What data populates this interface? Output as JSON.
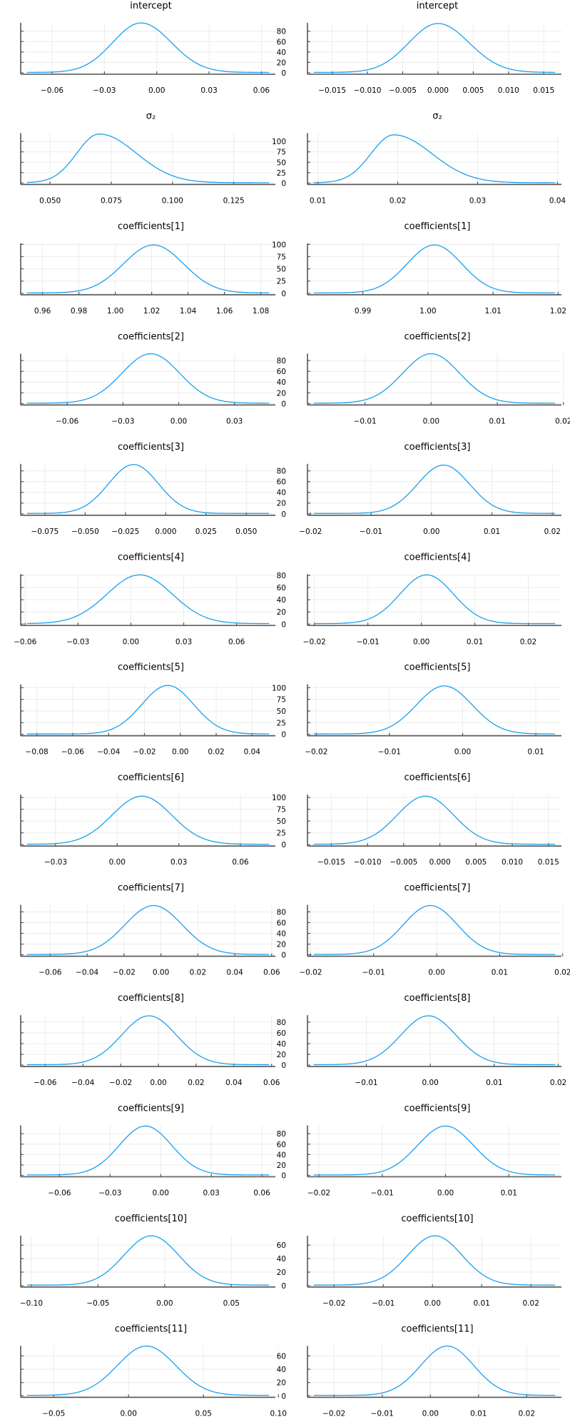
{
  "chart_data": {
    "type": "line",
    "layout": "grid",
    "rows": 13,
    "cols": 2,
    "series_color": "#1aa0ee",
    "grid": true,
    "legend": "none",
    "panels": [
      {
        "title": "intercept",
        "col": 0,
        "xlim": [
          -0.078,
          0.068
        ],
        "ylim": [
          0,
          96
        ],
        "xticks": [
          -0.06,
          -0.03,
          0.0,
          0.03,
          0.06
        ],
        "xtick_labels": [
          "−0.06",
          "−0.03",
          "0.00",
          "0.03",
          "0.06"
        ],
        "yticks": [
          0,
          20,
          40,
          60,
          80
        ],
        "ytick_labels": [
          "0",
          "20",
          "40",
          "60",
          "80"
        ],
        "peak_x": -0.009,
        "peak_y": 95,
        "sd": 0.0165,
        "skew": 0.05
      },
      {
        "title": "intercept",
        "col": 1,
        "xlim": [
          -0.0185,
          0.0175
        ],
        "ylim": [
          0,
          96
        ],
        "xticks": [
          -0.015,
          -0.01,
          -0.005,
          0.0,
          0.005,
          0.01,
          0.015
        ],
        "xtick_labels": [
          "−0.015",
          "−0.010",
          "−0.005",
          "0.000",
          "0.005",
          "0.010",
          "0.015"
        ],
        "yticks": [
          0,
          20,
          40,
          60,
          80
        ],
        "ytick_labels": [],
        "peak_x": 0.0,
        "peak_y": 94,
        "sd": 0.0042,
        "skew": 0.05
      },
      {
        "title": "σ₂",
        "col": 0,
        "xlim": [
          0.038,
          0.142
        ],
        "ylim": [
          0,
          120
        ],
        "xticks": [
          0.05,
          0.075,
          0.1,
          0.125
        ],
        "xtick_labels": [
          "0.050",
          "0.075",
          "0.100",
          "0.125"
        ],
        "yticks": [
          0,
          25,
          50,
          75,
          100
        ],
        "ytick_labels": [
          "0",
          "25",
          "50",
          "75",
          "100"
        ],
        "peak_x": 0.07,
        "peak_y": 117,
        "sd": 0.0105,
        "skew": 0.45
      },
      {
        "title": "σ₂",
        "col": 1,
        "xlim": [
          0.0087,
          0.0405
        ],
        "ylim": [
          0,
          120
        ],
        "xticks": [
          0.01,
          0.02,
          0.03,
          0.04
        ],
        "xtick_labels": [
          "0.01",
          "0.02",
          "0.03",
          "0.04"
        ],
        "yticks": [
          0,
          25,
          50,
          75,
          100
        ],
        "ytick_labels": [],
        "peak_x": 0.0195,
        "peak_y": 115,
        "sd": 0.0033,
        "skew": 0.45
      },
      {
        "title": "coefficients[1]",
        "col": 0,
        "xlim": [
          0.948,
          1.088
        ],
        "ylim": [
          0,
          102
        ],
        "xticks": [
          0.96,
          0.98,
          1.0,
          1.02,
          1.04,
          1.06,
          1.08
        ],
        "xtick_labels": [
          "0.96",
          "0.98",
          "1.00",
          "1.02",
          "1.04",
          "1.06",
          "1.08"
        ],
        "yticks": [
          0,
          25,
          50,
          75,
          100
        ],
        "ytick_labels": [
          "0",
          "25",
          "50",
          "75",
          "100"
        ],
        "peak_x": 1.021,
        "peak_y": 98,
        "sd": 0.0165,
        "skew": 0.0
      },
      {
        "title": "coefficients[1]",
        "col": 1,
        "xlim": [
          0.9815,
          1.0205
        ],
        "ylim": [
          0,
          102
        ],
        "xticks": [
          0.99,
          1.0,
          1.01,
          1.02
        ],
        "xtick_labels": [
          "0.99",
          "1.00",
          "1.01",
          "1.02"
        ],
        "yticks": [
          0,
          25,
          50,
          75,
          100
        ],
        "ytick_labels": [],
        "peak_x": 1.001,
        "peak_y": 98,
        "sd": 0.0042,
        "skew": 0.0
      },
      {
        "title": "coefficients[2]",
        "col": 0,
        "xlim": [
          -0.085,
          0.052
        ],
        "ylim": [
          0,
          93
        ],
        "xticks": [
          -0.06,
          -0.03,
          0.0,
          0.03
        ],
        "xtick_labels": [
          "−0.06",
          "−0.03",
          "0.00",
          "0.03"
        ],
        "yticks": [
          0,
          20,
          40,
          60,
          80
        ],
        "ytick_labels": [
          "0",
          "20",
          "40",
          "60",
          "80"
        ],
        "peak_x": -0.015,
        "peak_y": 92,
        "sd": 0.0155,
        "skew": 0.0
      },
      {
        "title": "coefficients[2]",
        "col": 1,
        "xlim": [
          -0.0187,
          0.0197
        ],
        "ylim": [
          0,
          93
        ],
        "xticks": [
          -0.01,
          0.0,
          0.01,
          0.02
        ],
        "xtick_labels": [
          "−0.01",
          "0.00",
          "0.01",
          "0.02"
        ],
        "yticks": [
          0,
          20,
          40,
          60,
          80
        ],
        "ytick_labels": [],
        "peak_x": 0.0,
        "peak_y": 92,
        "sd": 0.0043,
        "skew": 0.0
      },
      {
        "title": "coefficients[3]",
        "col": 0,
        "xlim": [
          -0.09,
          0.068
        ],
        "ylim": [
          0,
          93
        ],
        "xticks": [
          -0.075,
          -0.05,
          -0.025,
          0.0,
          0.025,
          0.05
        ],
        "xtick_labels": [
          "−0.075",
          "−0.050",
          "−0.025",
          "0.000",
          "0.025",
          "0.050"
        ],
        "yticks": [
          0,
          20,
          40,
          60,
          80
        ],
        "ytick_labels": [
          "0",
          "20",
          "40",
          "60",
          "80"
        ],
        "peak_x": -0.02,
        "peak_y": 91,
        "sd": 0.0155,
        "skew": 0.0
      },
      {
        "title": "coefficients[3]",
        "col": 1,
        "xlim": [
          -0.0205,
          0.0215
        ],
        "ylim": [
          0,
          93
        ],
        "xticks": [
          -0.02,
          -0.01,
          0.0,
          0.01,
          0.02
        ],
        "xtick_labels": [
          "−0.02",
          "−0.01",
          "0.00",
          "0.01",
          "0.02"
        ],
        "yticks": [
          0,
          20,
          40,
          60,
          80
        ],
        "ytick_labels": [],
        "peak_x": 0.002,
        "peak_y": 90,
        "sd": 0.0043,
        "skew": 0.0
      },
      {
        "title": "coefficients[4]",
        "col": 0,
        "xlim": [
          -0.0625,
          0.082
        ],
        "ylim": [
          0,
          82
        ],
        "xticks": [
          -0.06,
          -0.03,
          0.0,
          0.03,
          0.06
        ],
        "xtick_labels": [
          "−0.06",
          "−0.03",
          "0.00",
          "0.03",
          "0.06"
        ],
        "yticks": [
          0,
          20,
          40,
          60,
          80
        ],
        "ytick_labels": [
          "0",
          "20",
          "40",
          "60",
          "80"
        ],
        "peak_x": 0.005,
        "peak_y": 80,
        "sd": 0.0185,
        "skew": 0.0
      },
      {
        "title": "coefficients[4]",
        "col": 1,
        "xlim": [
          -0.0213,
          0.0262
        ],
        "ylim": [
          0,
          82
        ],
        "xticks": [
          -0.02,
          -0.01,
          0.0,
          0.01,
          0.02
        ],
        "xtick_labels": [
          "−0.02",
          "−0.01",
          "0.00",
          "0.01",
          "0.02"
        ],
        "yticks": [
          0,
          20,
          40,
          60,
          80
        ],
        "ytick_labels": [],
        "peak_x": 0.001,
        "peak_y": 80,
        "sd": 0.005,
        "skew": 0.0
      },
      {
        "title": "coefficients[5]",
        "col": 0,
        "xlim": [
          -0.089,
          0.053
        ],
        "ylim": [
          0,
          107
        ],
        "xticks": [
          -0.08,
          -0.06,
          -0.04,
          -0.02,
          0.0,
          0.02,
          0.04
        ],
        "xtick_labels": [
          "−0.08",
          "−0.06",
          "−0.04",
          "−0.02",
          "0.00",
          "0.02",
          "0.04"
        ],
        "yticks": [
          0,
          25,
          50,
          75,
          100
        ],
        "ytick_labels": [
          "0",
          "25",
          "50",
          "75",
          "100"
        ],
        "peak_x": -0.007,
        "peak_y": 104,
        "sd": 0.0145,
        "skew": 0.0
      },
      {
        "title": "coefficients[5]",
        "col": 1,
        "xlim": [
          -0.0212,
          0.0135
        ],
        "ylim": [
          0,
          107
        ],
        "xticks": [
          -0.02,
          -0.01,
          0.0,
          0.01
        ],
        "xtick_labels": [
          "−0.02",
          "−0.01",
          "0.00",
          "0.01"
        ],
        "yticks": [
          0,
          25,
          50,
          75,
          100
        ],
        "ytick_labels": [],
        "peak_x": -0.0025,
        "peak_y": 103,
        "sd": 0.0038,
        "skew": 0.0
      },
      {
        "title": "coefficients[6]",
        "col": 0,
        "xlim": [
          -0.047,
          0.077
        ],
        "ylim": [
          0,
          106
        ],
        "xticks": [
          -0.03,
          0.0,
          0.03,
          0.06
        ],
        "xtick_labels": [
          "−0.03",
          "0.00",
          "0.03",
          "0.06"
        ],
        "yticks": [
          0,
          25,
          50,
          75,
          100
        ],
        "ytick_labels": [
          "0",
          "25",
          "50",
          "75",
          "100"
        ],
        "peak_x": 0.012,
        "peak_y": 102,
        "sd": 0.0145,
        "skew": 0.0
      },
      {
        "title": "coefficients[6]",
        "col": 1,
        "xlim": [
          -0.0183,
          0.0168
        ],
        "ylim": [
          0,
          106
        ],
        "xticks": [
          -0.015,
          -0.01,
          -0.005,
          0.0,
          0.005,
          0.01,
          0.015
        ],
        "xtick_labels": [
          "−0.015",
          "−0.010",
          "−0.005",
          "0.000",
          "0.005",
          "0.010",
          "0.015"
        ],
        "yticks": [
          0,
          25,
          50,
          75,
          100
        ],
        "ytick_labels": [],
        "peak_x": -0.002,
        "peak_y": 102,
        "sd": 0.0039,
        "skew": 0.0
      },
      {
        "title": "coefficients[7]",
        "col": 0,
        "xlim": [
          -0.076,
          0.062
        ],
        "ylim": [
          0,
          93
        ],
        "xticks": [
          -0.06,
          -0.04,
          -0.02,
          0.0,
          0.02,
          0.04,
          0.06
        ],
        "xtick_labels": [
          "−0.06",
          "−0.04",
          "−0.02",
          "0.00",
          "0.02",
          "0.04",
          "0.06"
        ],
        "yticks": [
          0,
          20,
          40,
          60,
          80
        ],
        "ytick_labels": [
          "0",
          "20",
          "40",
          "60",
          "80"
        ],
        "peak_x": -0.004,
        "peak_y": 91,
        "sd": 0.0155,
        "skew": 0.0
      },
      {
        "title": "coefficients[7]",
        "col": 1,
        "xlim": [
          -0.0205,
          0.0198
        ],
        "ylim": [
          0,
          93
        ],
        "xticks": [
          -0.02,
          -0.01,
          0.0,
          0.01,
          0.02
        ],
        "xtick_labels": [
          "−0.02",
          "−0.01",
          "0.00",
          "0.01",
          "0.02"
        ],
        "yticks": [
          0,
          20,
          40,
          60,
          80
        ],
        "ytick_labels": [],
        "peak_x": -0.001,
        "peak_y": 91,
        "sd": 0.0043,
        "skew": 0.0
      },
      {
        "title": "coefficients[8]",
        "col": 0,
        "xlim": [
          -0.073,
          0.062
        ],
        "ylim": [
          0,
          93
        ],
        "xticks": [
          -0.06,
          -0.04,
          -0.02,
          0.0,
          0.02,
          0.04,
          0.06
        ],
        "xtick_labels": [
          "−0.06",
          "−0.04",
          "−0.02",
          "0.00",
          "0.02",
          "0.04",
          "0.06"
        ],
        "yticks": [
          0,
          20,
          40,
          60,
          80
        ],
        "ytick_labels": [
          "0",
          "20",
          "40",
          "60",
          "80"
        ],
        "peak_x": -0.005,
        "peak_y": 91,
        "sd": 0.0145,
        "skew": 0.0
      },
      {
        "title": "coefficients[8]",
        "col": 1,
        "xlim": [
          -0.0192,
          0.0205
        ],
        "ylim": [
          0,
          93
        ],
        "xticks": [
          -0.01,
          0.0,
          0.01,
          0.02
        ],
        "xtick_labels": [
          "−0.01",
          "0.00",
          "0.01",
          "0.02"
        ],
        "yticks": [
          0,
          20,
          40,
          60,
          80
        ],
        "ytick_labels": [],
        "peak_x": -0.0003,
        "peak_y": 91,
        "sd": 0.0043,
        "skew": 0.0
      },
      {
        "title": "coefficients[9]",
        "col": 0,
        "xlim": [
          -0.083,
          0.068
        ],
        "ylim": [
          0,
          96
        ],
        "xticks": [
          -0.06,
          -0.03,
          0.0,
          0.03,
          0.06
        ],
        "xtick_labels": [
          "−0.06",
          "−0.03",
          "0.00",
          "0.03",
          "0.06"
        ],
        "yticks": [
          0,
          20,
          40,
          60,
          80
        ],
        "ytick_labels": [
          "0",
          "20",
          "40",
          "60",
          "80"
        ],
        "peak_x": -0.009,
        "peak_y": 94,
        "sd": 0.0155,
        "skew": 0.0
      },
      {
        "title": "coefficients[9]",
        "col": 1,
        "xlim": [
          -0.0218,
          0.0183
        ],
        "ylim": [
          0,
          96
        ],
        "xticks": [
          -0.02,
          -0.01,
          0.0,
          0.01
        ],
        "xtick_labels": [
          "−0.02",
          "−0.01",
          "0.00",
          "0.01"
        ],
        "yticks": [
          0,
          20,
          40,
          60,
          80
        ],
        "ytick_labels": [],
        "peak_x": 0.0,
        "peak_y": 94,
        "sd": 0.0044,
        "skew": 0.0
      },
      {
        "title": "coefficients[10]",
        "col": 0,
        "xlim": [
          -0.108,
          0.083
        ],
        "ylim": [
          0,
          74
        ],
        "xticks": [
          -0.1,
          -0.05,
          0.0,
          0.05
        ],
        "xtick_labels": [
          "−0.10",
          "−0.05",
          "0.00",
          "0.05"
        ],
        "yticks": [
          0,
          20,
          40,
          60
        ],
        "ytick_labels": [
          "0",
          "20",
          "40",
          "60"
        ],
        "peak_x": -0.01,
        "peak_y": 73,
        "sd": 0.0205,
        "skew": 0.0
      },
      {
        "title": "coefficients[10]",
        "col": 1,
        "xlim": [
          -0.0254,
          0.0262
        ],
        "ylim": [
          0,
          74
        ],
        "xticks": [
          -0.02,
          -0.01,
          0.0,
          0.01,
          0.02
        ],
        "xtick_labels": [
          "−0.02",
          "−0.01",
          "0.00",
          "0.01",
          "0.02"
        ],
        "yticks": [
          0,
          20,
          40,
          60
        ],
        "ytick_labels": [],
        "peak_x": 0.0005,
        "peak_y": 73,
        "sd": 0.0055,
        "skew": 0.0
      },
      {
        "title": "coefficients[11]",
        "col": 0,
        "xlim": [
          -0.072,
          0.098
        ],
        "ylim": [
          0,
          75
        ],
        "xticks": [
          -0.05,
          0.0,
          0.05,
          0.1
        ],
        "xtick_labels": [
          "−0.05",
          "0.00",
          "0.05",
          "0.10"
        ],
        "yticks": [
          0,
          20,
          40,
          60
        ],
        "ytick_labels": [
          "0",
          "20",
          "40",
          "60"
        ],
        "peak_x": 0.012,
        "peak_y": 74,
        "sd": 0.0195,
        "skew": 0.0
      },
      {
        "title": "coefficients[11]",
        "col": 1,
        "xlim": [
          -0.0255,
          0.0272
        ],
        "ylim": [
          0,
          75
        ],
        "xticks": [
          -0.02,
          -0.01,
          0.0,
          0.01,
          0.02
        ],
        "xtick_labels": [
          "−0.02",
          "−0.01",
          "0.00",
          "0.01",
          "0.02"
        ],
        "yticks": [
          0,
          20,
          40,
          60
        ],
        "ytick_labels": [],
        "peak_x": 0.0035,
        "peak_y": 74,
        "sd": 0.0055,
        "skew": 0.0
      }
    ]
  }
}
